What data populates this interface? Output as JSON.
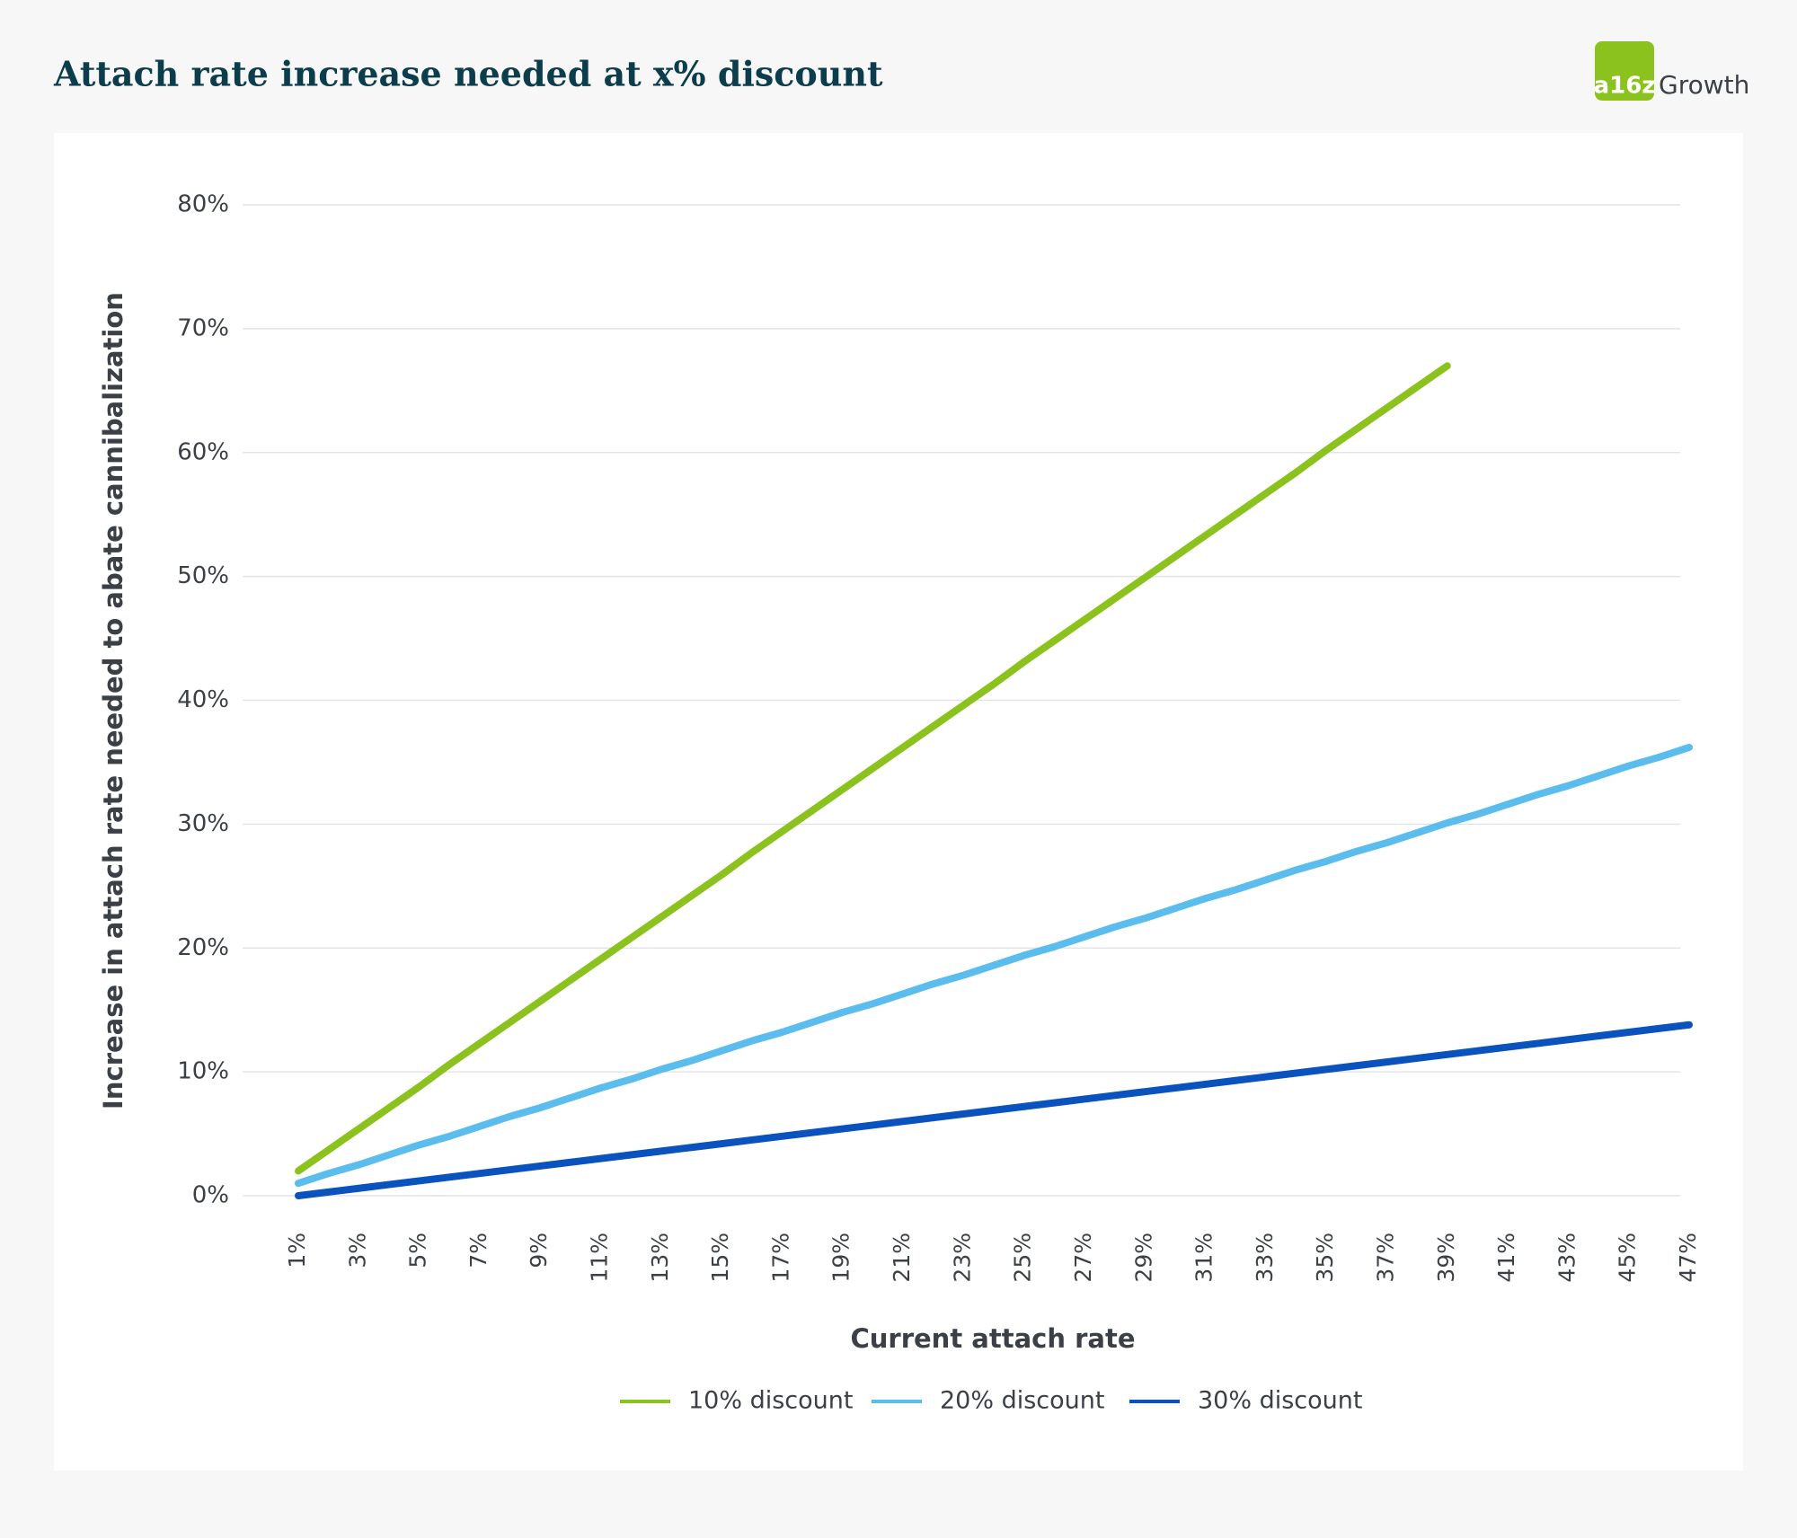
{
  "chart_data": {
    "type": "line",
    "title": "Attach rate increase needed at x% discount",
    "logo": {
      "mark": "a16z",
      "text": "Growth"
    },
    "x_label": "Current attach rate",
    "y_label": "Increase in attach rate needed to abate cannibalization",
    "categories": [
      "1%",
      null,
      "3%",
      null,
      "5%",
      null,
      "7%",
      null,
      "9%",
      null,
      "11%",
      null,
      "13%",
      null,
      "15%",
      null,
      "17%",
      null,
      "19%",
      null,
      "21%",
      null,
      "23%",
      null,
      "25%",
      null,
      "27%",
      null,
      "29%",
      null,
      "31%",
      null,
      "33%",
      null,
      "35%",
      null,
      "37%",
      null,
      "39%",
      null,
      "41%",
      null,
      "43%",
      null,
      "45%",
      null,
      "47%"
    ],
    "series": [
      {
        "name": "10% discount",
        "color": "#8cc21e",
        "values": [
          2.0,
          3.7,
          5.4,
          7.1,
          8.8,
          10.6,
          12.3,
          14.0,
          15.7,
          17.4,
          19.1,
          20.8,
          22.5,
          24.2,
          25.9,
          27.7,
          29.4,
          31.1,
          32.8,
          34.5,
          36.2,
          37.9,
          39.6,
          41.3,
          43.1,
          44.8,
          46.5,
          48.2,
          49.9,
          51.6,
          53.3,
          55.0,
          56.7,
          58.4,
          60.2,
          61.9,
          63.6,
          65.3,
          67.0,
          null,
          null,
          null,
          null,
          null,
          null,
          null,
          null
        ]
      },
      {
        "name": "20% discount",
        "color": "#5bbcee",
        "values": [
          1.0,
          1.8,
          2.5,
          3.3,
          4.1,
          4.8,
          5.6,
          6.4,
          7.1,
          7.9,
          8.7,
          9.4,
          10.2,
          10.9,
          11.7,
          12.5,
          13.2,
          14.0,
          14.8,
          15.5,
          16.3,
          17.1,
          17.8,
          18.6,
          19.4,
          20.1,
          20.9,
          21.7,
          22.4,
          23.2,
          24.0,
          24.7,
          25.5,
          26.3,
          27.0,
          27.8,
          28.5,
          29.3,
          30.1,
          30.8,
          31.6,
          32.4,
          33.1,
          33.9,
          34.7,
          35.4,
          36.2
        ]
      },
      {
        "name": "30% discount",
        "color": "#0a52be",
        "values": [
          0,
          0.3,
          0.6,
          0.9,
          1.2,
          1.5,
          1.8,
          2.1,
          2.4,
          2.7,
          3.0,
          3.3,
          3.6,
          3.9,
          4.2,
          4.5,
          4.8,
          5.1,
          5.4,
          5.7,
          6.0,
          6.3,
          6.6,
          6.9,
          7.2,
          7.5,
          7.8,
          8.1,
          8.4,
          8.7,
          9.0,
          9.3,
          9.6,
          9.9,
          10.2,
          10.5,
          10.8,
          11.1,
          11.4,
          11.7,
          12.0,
          12.3,
          12.6,
          12.9,
          13.2,
          13.5,
          13.8
        ]
      }
    ],
    "ylim": [
      0,
      80
    ],
    "yticks": [
      {
        "value": 0,
        "label": "0%"
      },
      {
        "value": 10,
        "label": "10%"
      },
      {
        "value": 20,
        "label": "20%"
      },
      {
        "value": 30,
        "label": "30%"
      },
      {
        "value": 40,
        "label": "40%"
      },
      {
        "value": 50,
        "label": "50%"
      },
      {
        "value": 60,
        "label": "60%"
      },
      {
        "value": 70,
        "label": "70%"
      },
      {
        "value": 80,
        "label": "80%"
      }
    ],
    "grid": true,
    "legend": "bottom"
  }
}
